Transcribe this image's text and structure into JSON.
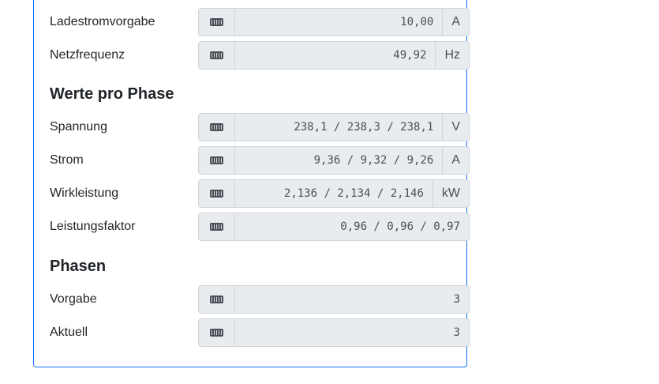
{
  "rows_top": [
    {
      "label": "Ladestromvorgabe",
      "value": "10,00",
      "unit": "A"
    },
    {
      "label": "Netzfrequenz",
      "value": "49,92",
      "unit": "Hz"
    }
  ],
  "phase_heading": "Werte pro Phase",
  "rows_phase": [
    {
      "label": "Spannung",
      "value": "238,1 / 238,3 / 238,1",
      "unit": "V"
    },
    {
      "label": "Strom",
      "value": "9,36 / 9,32 / 9,26",
      "unit": "A"
    },
    {
      "label": "Wirkleistung",
      "value": "2,136 / 2,134 / 2,146",
      "unit": "kW"
    },
    {
      "label": "Leistungsfaktor",
      "value": "0,96 / 0,96 / 0,97",
      "unit": ""
    }
  ],
  "phasen_heading": "Phasen",
  "rows_phasen": [
    {
      "label": "Vorgabe",
      "value": "3",
      "unit": ""
    },
    {
      "label": "Aktuell",
      "value": "3",
      "unit": ""
    }
  ],
  "icon": "keyboard-icon",
  "accent": "#0d6efd"
}
